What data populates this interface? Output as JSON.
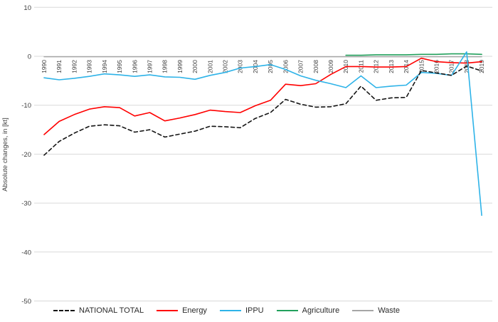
{
  "chart_data": {
    "type": "line",
    "title": "",
    "ylabel": "Absolute changes, in [kt]",
    "categories": [
      "1990",
      "1991",
      "1992",
      "1993",
      "1994",
      "1995",
      "1996",
      "1997",
      "1998",
      "1999",
      "2000",
      "2001",
      "2002",
      "2003",
      "2004",
      "2005",
      "2006",
      "2007",
      "2008",
      "2009",
      "2010",
      "2011",
      "2012",
      "2013",
      "2014",
      "2015",
      "2016",
      "2017",
      "2018",
      "2019"
    ],
    "ylim": [
      -50,
      10
    ],
    "y_ticks": [
      10,
      0,
      -10,
      -20,
      -30,
      -40,
      -50
    ],
    "grid": true,
    "legend_position": "bottom",
    "colors": {
      "grid": "#d9d9d9",
      "tick_label": "#404040",
      "background": "#ffffff"
    },
    "series": [
      {
        "id": "national-total",
        "name": "NATIONAL TOTAL",
        "color": "#141414",
        "style": "dashed",
        "values": [
          -20.2,
          -17.4,
          -15.7,
          -14.3,
          -14.0,
          -14.2,
          -15.5,
          -15.0,
          -16.5,
          -15.9,
          -15.3,
          -14.3,
          -14.4,
          -14.6,
          -12.7,
          -11.5,
          -8.8,
          -9.8,
          -10.4,
          -10.3,
          -9.7,
          -6.1,
          -9.0,
          -8.5,
          -8.4,
          -2.9,
          -3.4,
          -3.9,
          -2.0,
          -3.0
        ]
      },
      {
        "id": "energy",
        "name": "Energy",
        "color": "#ff0000",
        "style": "solid",
        "values": [
          -16.0,
          -13.3,
          -11.9,
          -10.8,
          -10.3,
          -10.5,
          -12.2,
          -11.5,
          -13.2,
          -12.6,
          -11.9,
          -11.0,
          -11.3,
          -11.5,
          -10.1,
          -9.0,
          -5.7,
          -6.0,
          -5.6,
          -3.7,
          -2.1,
          -2.1,
          -2.2,
          -2.2,
          -2.1,
          -0.4,
          -1.1,
          -1.3,
          -1.4,
          -1.1
        ]
      },
      {
        "id": "ippu",
        "name": "IPPU",
        "color": "#2eb3e8",
        "style": "solid",
        "values": [
          -4.4,
          -4.8,
          -4.5,
          -4.1,
          -3.6,
          -3.8,
          -4.1,
          -3.8,
          -4.2,
          -4.3,
          -4.7,
          -3.9,
          -3.3,
          -2.4,
          -2.1,
          -1.7,
          -2.7,
          -4.0,
          -4.9,
          -5.6,
          -6.4,
          -4.0,
          -6.4,
          -6.1,
          -5.9,
          -3.3,
          -3.5,
          -3.9,
          0.9,
          -32.5
        ]
      },
      {
        "id": "agriculture",
        "name": "Agriculture",
        "color": "#22a05c",
        "style": "solid",
        "values": [
          null,
          null,
          null,
          null,
          null,
          null,
          null,
          null,
          null,
          null,
          null,
          null,
          null,
          null,
          null,
          null,
          null,
          null,
          null,
          null,
          0.2,
          0.2,
          0.3,
          0.3,
          0.3,
          0.4,
          0.4,
          0.5,
          0.5,
          0.4
        ]
      },
      {
        "id": "waste",
        "name": "Waste",
        "color": "#a6a6a6",
        "style": "solid",
        "values": [
          -0.1,
          -0.1,
          -0.1,
          -0.1,
          -0.1,
          -0.1,
          -0.1,
          -0.1,
          -0.1,
          -0.1,
          -0.1,
          -0.1,
          -0.1,
          -0.1,
          -0.1,
          -0.1,
          -0.1,
          -0.1,
          -0.1,
          -0.1,
          -0.1,
          -0.1,
          -0.1,
          -0.1,
          -0.1,
          -0.1,
          -0.1,
          -0.1,
          -0.1,
          -0.1
        ]
      }
    ]
  }
}
